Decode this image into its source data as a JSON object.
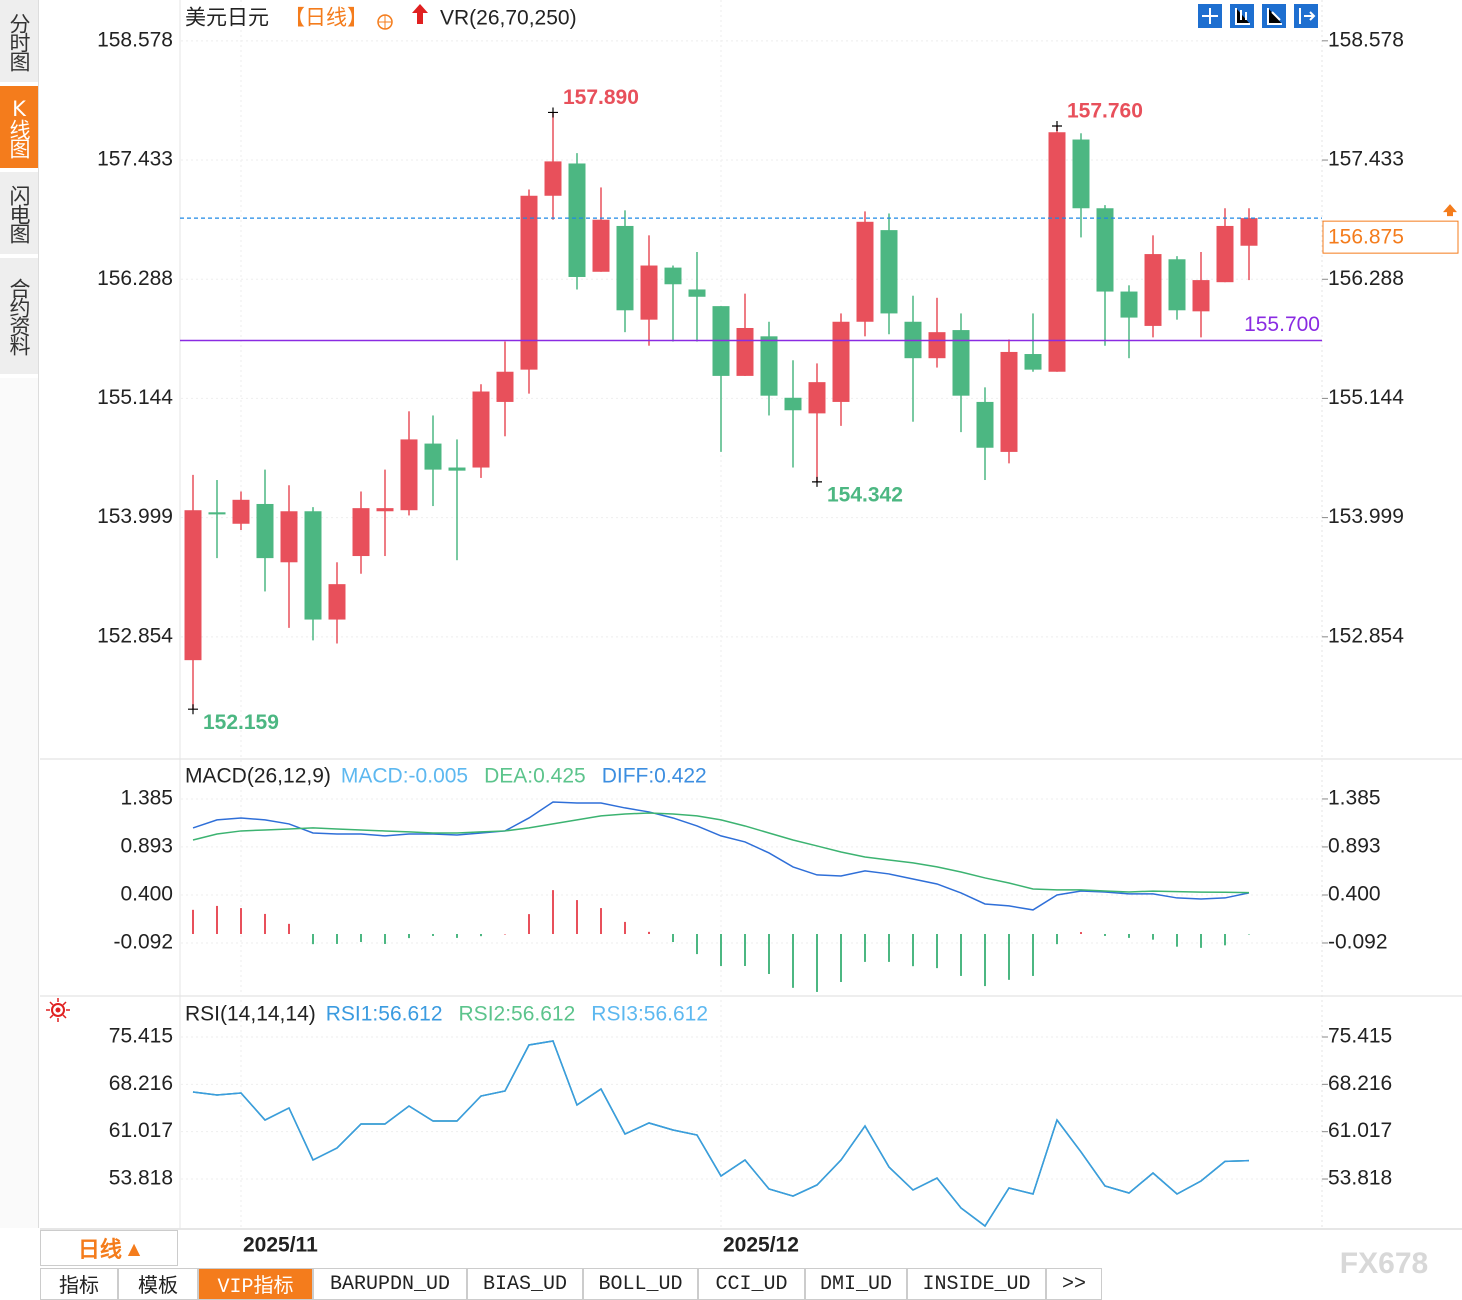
{
  "ui": {
    "side_tabs": [
      "分时图",
      "K线图",
      "闪电图",
      "合约资料"
    ],
    "period_tab": "日线",
    "bottom_tabs": [
      "指标",
      "模板",
      "VIP指标",
      "BARUPDN_UD",
      "BIAS_UD",
      "BOLL_UD",
      "CCI_UD",
      "DMI_UD",
      "INSIDE_UD",
      ">>"
    ],
    "watermark": "FX678"
  },
  "chart_data": [
    {
      "type": "candlestick",
      "title": "美元日元",
      "period": "【日线】",
      "indicator": "VR(26,70,250)",
      "up_color": "#e8505b",
      "down_color": "#4cb782",
      "grid": true,
      "categories": [
        null,
        null,
        "2025/11",
        null,
        null,
        null,
        null,
        null,
        null,
        null,
        null,
        null,
        null,
        null,
        null,
        null,
        null,
        null,
        null,
        null,
        null,
        null,
        "2025/12",
        null,
        null,
        null,
        null,
        null,
        null,
        null,
        null,
        null,
        null,
        null,
        null,
        null,
        null,
        null,
        null,
        null,
        null,
        null,
        null,
        null,
        null
      ],
      "open": [
        152.63,
        154.05,
        153.94,
        154.13,
        153.57,
        154.06,
        153.02,
        153.63,
        154.06,
        154.07,
        154.71,
        154.48,
        154.48,
        155.11,
        155.42,
        157.09,
        157.4,
        156.36,
        156.8,
        155.9,
        156.4,
        156.19,
        156.03,
        155.36,
        155.74,
        155.15,
        155.0,
        155.11,
        155.88,
        156.76,
        155.88,
        155.53,
        155.8,
        155.11,
        154.63,
        155.57,
        155.4,
        157.63,
        156.97,
        156.17,
        155.84,
        156.48,
        155.98,
        156.26,
        156.61
      ],
      "high": [
        154.41,
        154.36,
        154.25,
        154.46,
        154.31,
        154.1,
        153.57,
        154.25,
        154.46,
        155.02,
        154.98,
        154.75,
        155.28,
        155.69,
        157.15,
        157.89,
        157.5,
        157.17,
        156.95,
        156.71,
        156.42,
        156.55,
        156.03,
        156.15,
        155.88,
        155.51,
        155.48,
        155.96,
        156.94,
        156.92,
        156.13,
        156.11,
        155.96,
        155.25,
        155.71,
        155.96,
        157.76,
        157.69,
        157.0,
        156.23,
        156.71,
        156.51,
        156.55,
        156.97,
        156.97
      ],
      "low": [
        152.159,
        153.61,
        153.88,
        153.29,
        152.94,
        152.82,
        152.79,
        153.46,
        153.63,
        154.02,
        154.11,
        153.59,
        154.38,
        154.78,
        155.19,
        156.86,
        156.19,
        156.36,
        155.78,
        155.65,
        155.69,
        155.69,
        154.63,
        155.36,
        154.98,
        154.48,
        154.342,
        154.88,
        155.74,
        155.76,
        154.92,
        155.44,
        154.82,
        154.36,
        154.52,
        155.4,
        155.4,
        156.69,
        155.65,
        155.53,
        155.73,
        155.9,
        155.73,
        156.26,
        156.28
      ],
      "close": [
        154.07,
        154.03,
        154.17,
        153.61,
        154.06,
        153.02,
        153.36,
        154.09,
        154.09,
        154.75,
        154.46,
        154.45,
        155.21,
        155.4,
        157.09,
        157.42,
        156.31,
        156.86,
        155.99,
        156.42,
        156.24,
        156.12,
        155.36,
        155.82,
        155.17,
        155.03,
        155.3,
        155.88,
        156.84,
        155.96,
        155.53,
        155.78,
        155.17,
        154.67,
        155.59,
        155.42,
        157.7,
        156.97,
        156.17,
        155.92,
        156.53,
        155.99,
        156.28,
        156.8,
        156.875
      ],
      "ylim": [
        151.7,
        158.97
      ],
      "yticks": [
        158.578,
        157.433,
        156.288,
        155.144,
        153.999,
        152.854
      ],
      "annotations": [
        {
          "value": 157.89,
          "label": "157.890"
        },
        {
          "value": 157.76,
          "label": "157.760"
        },
        154.342,
        152.159
      ],
      "hline": {
        "value": 155.7,
        "label": "155.700",
        "color": "#8a2be2"
      },
      "last_price": {
        "value": 156.875,
        "color": "#f47c1c",
        "line_color": "#1e88e5"
      }
    },
    {
      "type": "line",
      "title": "MACD(26,12,9)",
      "grid": true,
      "ylim": [
        -0.605,
        1.764
      ],
      "yticks": [
        1.385,
        0.893,
        {
          "value": 0.4,
          "label": "0.400"
        },
        -0.092
      ],
      "series": [
        {
          "name": "DIFF:0.422",
          "color": "#2f6fd8",
          "legend_color": "#3c8ee0",
          "values": [
            1.088,
            1.17,
            1.19,
            1.17,
            1.129,
            1.036,
            1.026,
            1.026,
            1.006,
            1.026,
            1.026,
            1.016,
            1.036,
            1.057,
            1.19,
            1.354,
            1.344,
            1.344,
            1.293,
            1.252,
            1.19,
            1.108,
            1.006,
            0.944,
            0.831,
            0.688,
            0.606,
            0.595,
            0.647,
            0.616,
            0.564,
            0.513,
            0.421,
            0.308,
            0.288,
            0.247,
            0.4,
            0.441,
            0.431,
            0.411,
            0.411,
            0.37,
            0.359,
            0.37,
            0.422
          ]
        },
        {
          "name": "DEA:0.425",
          "color": "#3cb371",
          "legend_color": "#5cc48c",
          "values": [
            0.964,
            1.026,
            1.057,
            1.067,
            1.077,
            1.088,
            1.077,
            1.067,
            1.057,
            1.047,
            1.036,
            1.036,
            1.047,
            1.057,
            1.088,
            1.129,
            1.17,
            1.211,
            1.231,
            1.241,
            1.231,
            1.211,
            1.17,
            1.108,
            1.036,
            0.964,
            0.903,
            0.841,
            0.79,
            0.759,
            0.729,
            0.688,
            0.636,
            0.575,
            0.523,
            0.462,
            0.452,
            0.452,
            0.441,
            0.431,
            0.44,
            0.435,
            0.43,
            0.428,
            0.425
          ]
        },
        {
          "name": "MACD:-0.005",
          "type": "bar",
          "color": "#5db8f0",
          "up_color": "#e8505b",
          "down_color": "#4cb782",
          "values": [
            0.248,
            0.288,
            0.266,
            0.206,
            0.104,
            -0.104,
            -0.102,
            -0.082,
            -0.102,
            -0.042,
            -0.02,
            -0.04,
            -0.022,
            0,
            0.204,
            0.45,
            0.348,
            0.266,
            0.124,
            0.022,
            -0.082,
            -0.206,
            -0.328,
            -0.328,
            -0.41,
            -0.552,
            -0.594,
            -0.492,
            -0.286,
            -0.286,
            -0.33,
            -0.35,
            -0.43,
            -0.534,
            -0.47,
            -0.43,
            -0.104,
            0.02,
            -0.02,
            -0.04,
            -0.058,
            -0.13,
            -0.142,
            -0.116,
            -0.005
          ]
        }
      ]
    },
    {
      "type": "line",
      "title": "RSI(14,14,14)",
      "grid": true,
      "ylim": [
        46.37,
        81.04
      ],
      "yticks": [
        75.415,
        68.216,
        61.017,
        53.818
      ],
      "series": [
        {
          "name": "RSI3:56.612",
          "color": "#5db8f0",
          "values": [
            67.05,
            66.59,
            66.9,
            62.79,
            64.62,
            56.71,
            58.53,
            62.18,
            62.18,
            64.92,
            62.64,
            62.64,
            66.44,
            67.2,
            74.2,
            74.81,
            65.07,
            67.51,
            60.66,
            62.34,
            61.27,
            60.51,
            54.27,
            56.71,
            52.3,
            51.23,
            52.91,
            56.71,
            61.88,
            55.64,
            52.15,
            53.97,
            49.41,
            46.67,
            52.45,
            51.54,
            62.79,
            57.93,
            52.76,
            51.69,
            54.73,
            51.54,
            53.52,
            56.5,
            56.612
          ]
        },
        {
          "name": "RSI2:56.612",
          "color": "#5cc48c",
          "values": [
            67.05,
            66.59,
            66.9,
            62.79,
            64.62,
            56.71,
            58.53,
            62.18,
            62.18,
            64.92,
            62.64,
            62.64,
            66.44,
            67.2,
            74.2,
            74.81,
            65.07,
            67.51,
            60.66,
            62.34,
            61.27,
            60.51,
            54.27,
            56.71,
            52.3,
            51.23,
            52.91,
            56.71,
            61.88,
            55.64,
            52.15,
            53.97,
            49.41,
            46.67,
            52.45,
            51.54,
            62.79,
            57.93,
            52.76,
            51.69,
            54.73,
            51.54,
            53.52,
            56.5,
            56.612
          ]
        },
        {
          "name": "RSI1:56.612",
          "color": "#3b9be0",
          "values": [
            67.05,
            66.59,
            66.9,
            62.79,
            64.62,
            56.71,
            58.53,
            62.18,
            62.18,
            64.92,
            62.64,
            62.64,
            66.44,
            67.2,
            74.2,
            74.81,
            65.07,
            67.51,
            60.66,
            62.34,
            61.27,
            60.51,
            54.27,
            56.71,
            52.3,
            51.23,
            52.91,
            56.71,
            61.88,
            55.64,
            52.15,
            53.97,
            49.41,
            46.67,
            52.45,
            51.54,
            62.79,
            57.93,
            52.76,
            51.69,
            54.73,
            51.54,
            53.52,
            56.5,
            56.612
          ]
        }
      ]
    }
  ]
}
